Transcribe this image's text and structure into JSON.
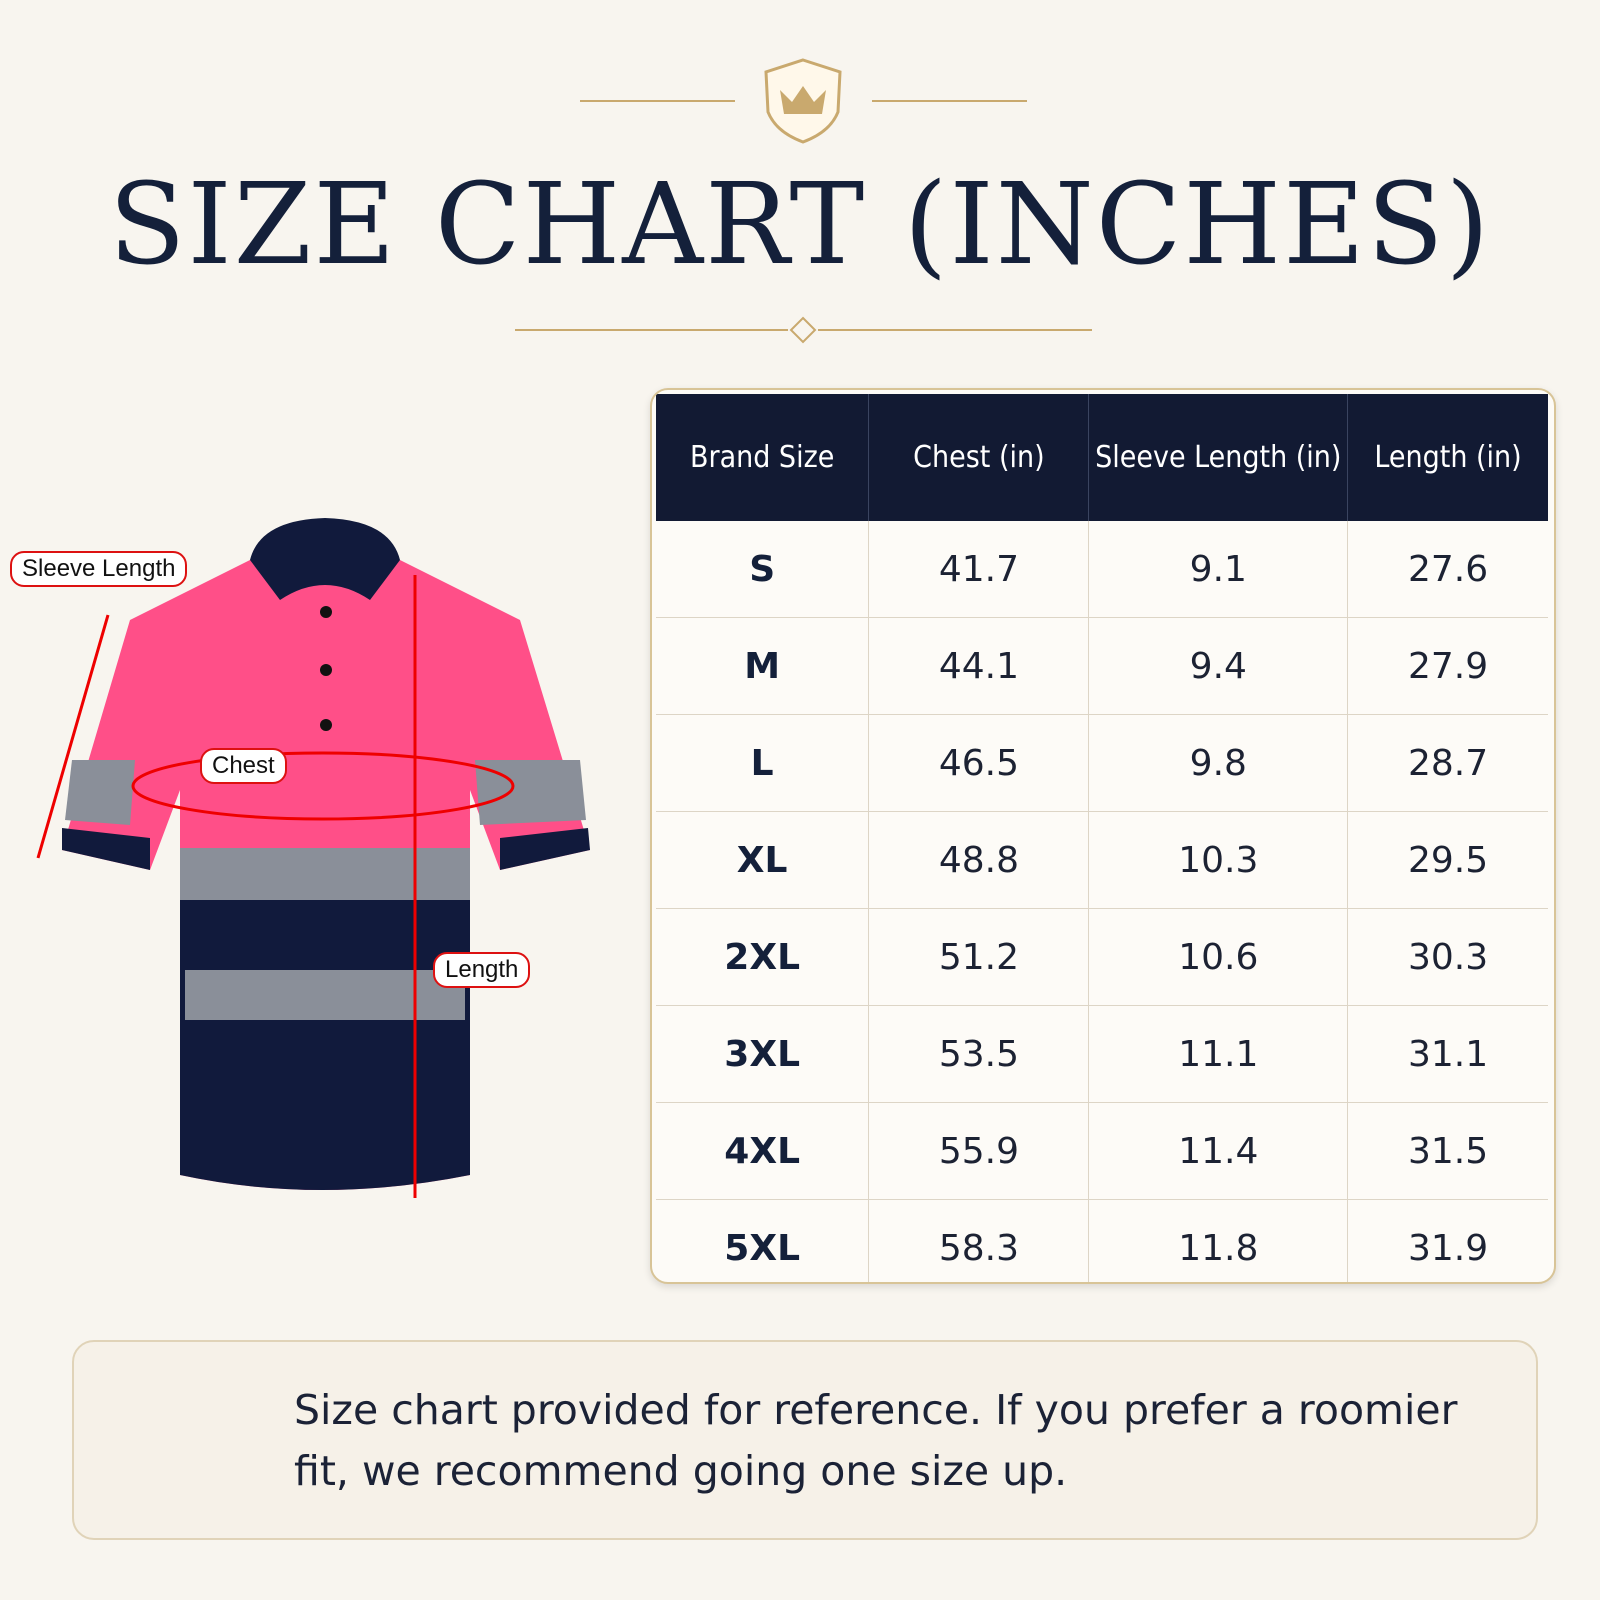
{
  "header": {
    "title": "SIZE CHART (INCHES)"
  },
  "diagram": {
    "labels": [
      "Sleeve Length",
      "Chest",
      "Length"
    ]
  },
  "table": {
    "columns": [
      "Brand Size",
      "Chest (in)",
      "Sleeve Length (in)",
      "Length (in)"
    ],
    "rows": [
      [
        "S",
        "41.7",
        "9.1",
        "27.6"
      ],
      [
        "M",
        "44.1",
        "9.4",
        "27.9"
      ],
      [
        "L",
        "46.5",
        "9.8",
        "28.7"
      ],
      [
        "XL",
        "48.8",
        "10.3",
        "29.5"
      ],
      [
        "2XL",
        "51.2",
        "10.6",
        "30.3"
      ],
      [
        "3XL",
        "53.5",
        "11.1",
        "31.1"
      ],
      [
        "4XL",
        "55.9",
        "11.4",
        "31.5"
      ],
      [
        "5XL",
        "58.3",
        "11.8",
        "31.9"
      ]
    ]
  },
  "note": {
    "text": "Size chart provided for reference. If you prefer a roomier fit, we recommend going one size up."
  }
}
